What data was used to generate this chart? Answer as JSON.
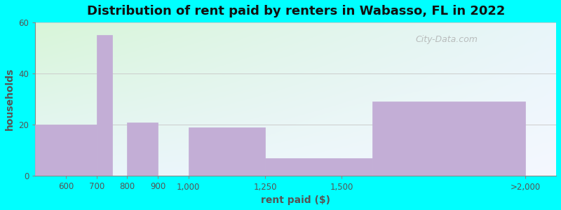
{
  "title": "Distribution of rent paid by renters in Wabasso, FL in 2022",
  "xlabel": "rent paid ($)",
  "ylabel": "households",
  "background_color": "#00FFFF",
  "bar_color": "#C3AED6",
  "categories": [
    "600",
    "700",
    "800",
    "900",
    "1,000",
    "1,250",
    "1,500",
    ">2,000"
  ],
  "values": [
    20,
    55,
    0,
    21,
    0,
    19,
    7,
    29
  ],
  "bar_edges": [
    500,
    700,
    750,
    800,
    900,
    1000,
    1250,
    1600,
    2100
  ],
  "tick_positions": [
    600,
    700,
    800,
    900,
    1000,
    1250,
    1500,
    2100
  ],
  "tick_labels": [
    "600",
    "700",
    "800",
    "900",
    "1,000",
    "1,250",
    "1,500",
    ">2,000"
  ],
  "xlim": [
    500,
    2200
  ],
  "ylim": [
    0,
    60
  ],
  "yticks": [
    0,
    20,
    40,
    60
  ],
  "title_fontsize": 13,
  "axis_label_fontsize": 10,
  "tick_fontsize": 8.5,
  "watermark_text": "City-Data.com",
  "gradient_top": "#d8f5d8",
  "gradient_bottom": "#e8f5fa"
}
